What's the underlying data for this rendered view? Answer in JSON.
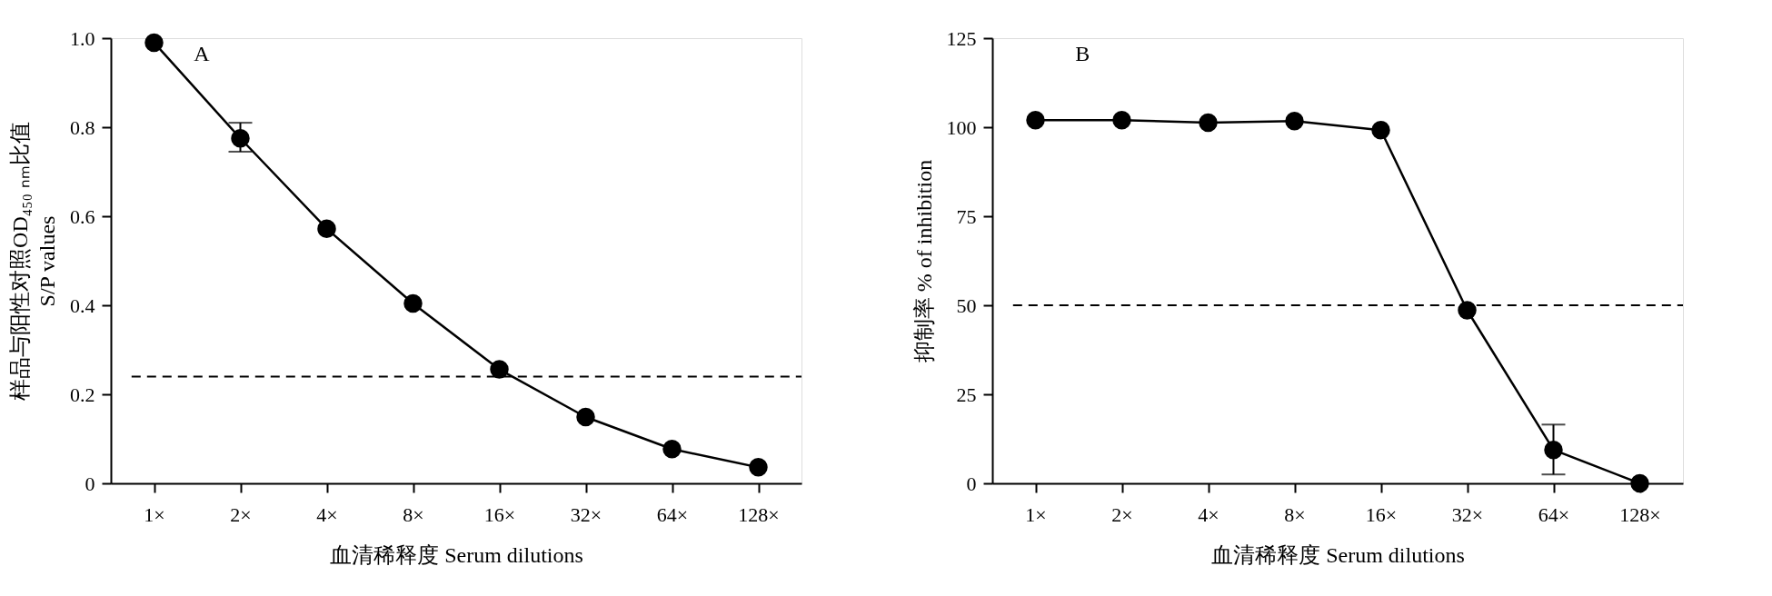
{
  "chart_data": [
    {
      "type": "line",
      "annotations": [
        "A"
      ],
      "xlabel": "血清稀释度 Serum dilutions",
      "ylabel": "样品与阳性对照OD₄₅₀ ₙₘ比值\nS/P values",
      "categories": [
        "1×",
        "2×",
        "4×",
        "8×",
        "16×",
        "32×",
        "64×",
        "128×"
      ],
      "series": [
        {
          "color": "#000000",
          "values": [
            0.99,
            0.775,
            0.572,
            0.404,
            0.256,
            0.149,
            0.077,
            0.036
          ],
          "errors": [
            null,
            [
              0.745,
              0.81
            ],
            null,
            null,
            null,
            null,
            null,
            null
          ]
        }
      ],
      "ylim": [
        0,
        1.0
      ],
      "yticks": [
        0,
        0.2,
        0.4,
        0.6,
        0.8,
        {
          "value": 1,
          "label": "1.0"
        }
      ],
      "ref_lines": [
        {
          "axis": "y",
          "value": 0.24,
          "label": null,
          "color": "#000000",
          "line_style": "dashed"
        }
      ],
      "marker": "circle",
      "line_style": "solid",
      "grid": false
    },
    {
      "type": "line",
      "annotations": [
        "B"
      ],
      "xlabel": "血清稀释度 Serum dilutions",
      "ylabel": "抑制率 % of inhibition",
      "categories": [
        "1×",
        "2×",
        "4×",
        "8×",
        "16×",
        "32×",
        "64×",
        "128×"
      ],
      "series": [
        {
          "color": "#000000",
          "values": [
            102,
            102,
            101.3,
            101.7,
            99.2,
            48.6,
            9.4,
            0
          ],
          "errors": [
            null,
            null,
            null,
            null,
            null,
            null,
            [
              2.5,
              16.5
            ],
            null
          ]
        }
      ],
      "ylim": [
        0,
        125
      ],
      "yticks": [
        0,
        25,
        50,
        75,
        100,
        125
      ],
      "ref_lines": [
        {
          "axis": "y",
          "value": 50,
          "label": null,
          "color": "#000000",
          "line_style": "dashed"
        }
      ],
      "marker": "circle",
      "line_style": "solid",
      "grid": false
    }
  ]
}
